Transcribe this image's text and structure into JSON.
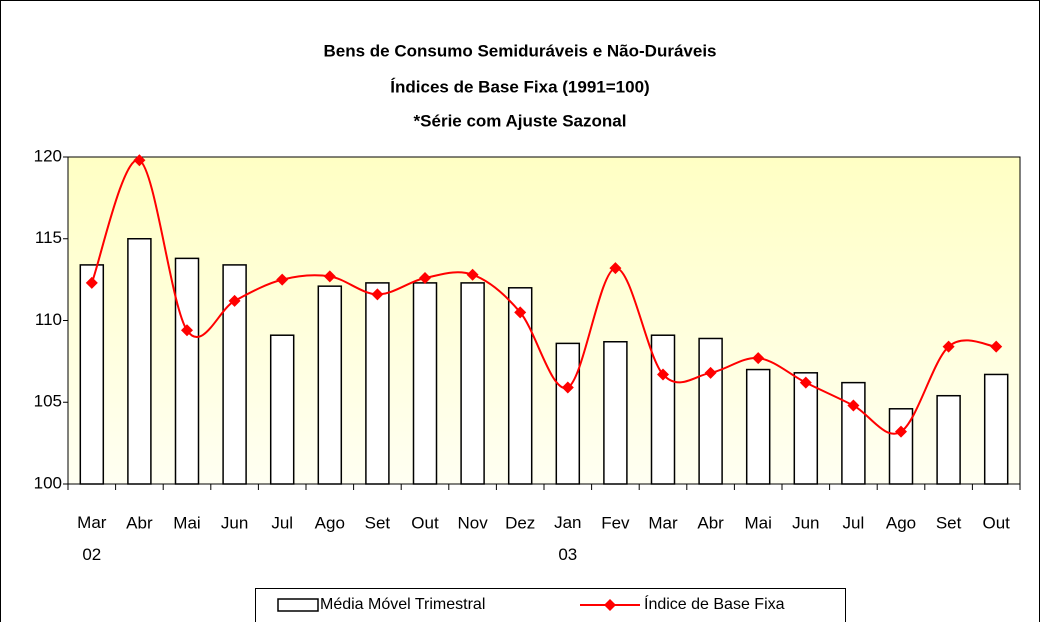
{
  "chart_data": {
    "type": "bar_line",
    "title": [
      "Bens de Consumo Semiduráveis e Não-Duráveis",
      "Índices de Base Fixa (1991=100)",
      "*Série com Ajuste Sazonal"
    ],
    "categories": [
      "Mar 02",
      "Abr",
      "Mai",
      "Jun",
      "Jul",
      "Ago",
      "Set",
      "Out",
      "Nov",
      "Dez",
      "Jan 03",
      "Fev",
      "Mar",
      "Abr",
      "Mai",
      "Jun",
      "Jul",
      "Ago",
      "Set",
      "Out"
    ],
    "series": [
      {
        "name": "Média Móvel Trimestral",
        "type": "bar",
        "color": "#ffffff",
        "values": [
          113.4,
          115.0,
          113.8,
          113.4,
          109.1,
          112.1,
          112.3,
          112.3,
          112.3,
          112.0,
          108.6,
          108.7,
          109.1,
          108.9,
          107.0,
          106.8,
          106.2,
          104.6,
          105.4,
          106.7
        ]
      },
      {
        "name": "Índice de Base Fixa",
        "type": "line",
        "color": "#ff0000",
        "values": [
          112.3,
          119.8,
          109.4,
          111.2,
          112.5,
          112.7,
          111.6,
          112.6,
          112.8,
          110.5,
          105.9,
          113.2,
          106.7,
          106.8,
          107.7,
          106.2,
          104.8,
          103.2,
          108.4,
          108.4
        ]
      }
    ],
    "ylim": [
      100,
      120
    ],
    "yticks": [
      100,
      105,
      110,
      115,
      120
    ],
    "grid": false,
    "legend": "bottom"
  }
}
